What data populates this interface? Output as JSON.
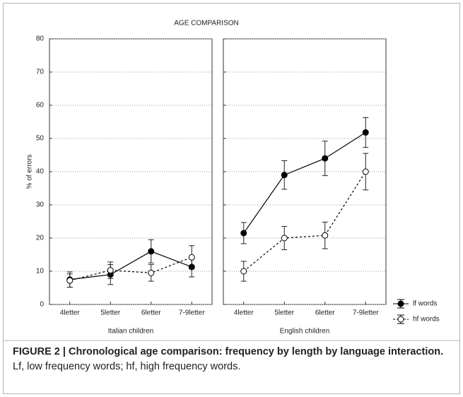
{
  "chart_data": {
    "type": "line",
    "title": "AGE COMPARISON",
    "ylabel": "% of errors",
    "categories": [
      "4letter",
      "5letter",
      "6letter",
      "7-9letter"
    ],
    "ylim": [
      0,
      80
    ],
    "yticks": [
      0,
      10,
      20,
      30,
      40,
      50,
      60,
      70,
      80
    ],
    "grid": true,
    "legend": "lower right outside",
    "series": [
      {
        "name": "lf words",
        "color": "#000000",
        "marker_fill": "#000000",
        "dash": false
      },
      {
        "name": "hf words",
        "color": "#000000",
        "marker_fill": "#ffffff",
        "dash": true
      }
    ],
    "panels": [
      {
        "xlabel": "Italian children",
        "values": [
          [
            7.5,
            9,
            16,
            11.3
          ],
          [
            7.2,
            10.3,
            9.5,
            14.2
          ]
        ],
        "errors": [
          [
            2.3,
            3,
            3.5,
            3
          ],
          [
            2,
            2.5,
            2.5,
            3.5
          ]
        ]
      },
      {
        "xlabel": "English children",
        "values": [
          [
            21.5,
            39,
            44,
            51.8
          ],
          [
            10,
            20,
            20.8,
            40
          ]
        ],
        "errors": [
          [
            3.2,
            4.3,
            5.2,
            4.5
          ],
          [
            3,
            3.5,
            4,
            5.5
          ]
        ]
      }
    ]
  },
  "caption": {
    "label": "FIGURE 2 | Chronological age comparison: frequency by length by language interaction.",
    "text": "Lf, low frequency words; hf, high frequency words."
  }
}
